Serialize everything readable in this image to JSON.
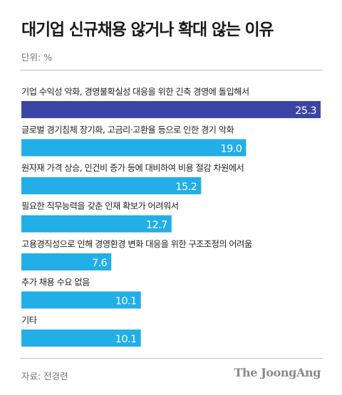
{
  "header": {
    "title": "대기업 신규채용 않거나 확대 않는 이유",
    "unit": "단위: %"
  },
  "footer": {
    "source": "자료: 전경련",
    "brand": "The JoongAng"
  },
  "colors": {
    "highlight_bar": "#3b45a5",
    "bar": "#22aee6",
    "value_text": "#ffffff"
  },
  "chart_data": {
    "type": "bar",
    "orientation": "horizontal",
    "title": "대기업 신규채용 않거나 확대 않는 이유",
    "unit": "%",
    "categories": [
      "기업 수익성 악화, 경영불확실성 대응을 위한 긴축 경영에 돌입해서",
      "글로벌 경기침체 장기화, 고금리·고환율 등으로 인한 경기 악화",
      "원자재 가격 상승, 인건비 증가 등에 대비하여 비용 절감 차원에서",
      "필요한 직무능력을 갖춘 인재 확보가 어려워서",
      "고용경직성으로 인해 경영환경 변화 대응을 위한 구조조정의 어려움",
      "추가 채용 수요 없음",
      "기타"
    ],
    "values": [
      25.3,
      19.0,
      15.2,
      12.7,
      7.6,
      10.1,
      10.1
    ],
    "value_labels": [
      "25.3",
      "19.0",
      "15.2",
      "12.7",
      "7.6",
      "10.1",
      "10.1"
    ],
    "xlim": [
      0,
      25.3
    ],
    "grid": false,
    "legend": "none",
    "highlight_index": 0
  }
}
